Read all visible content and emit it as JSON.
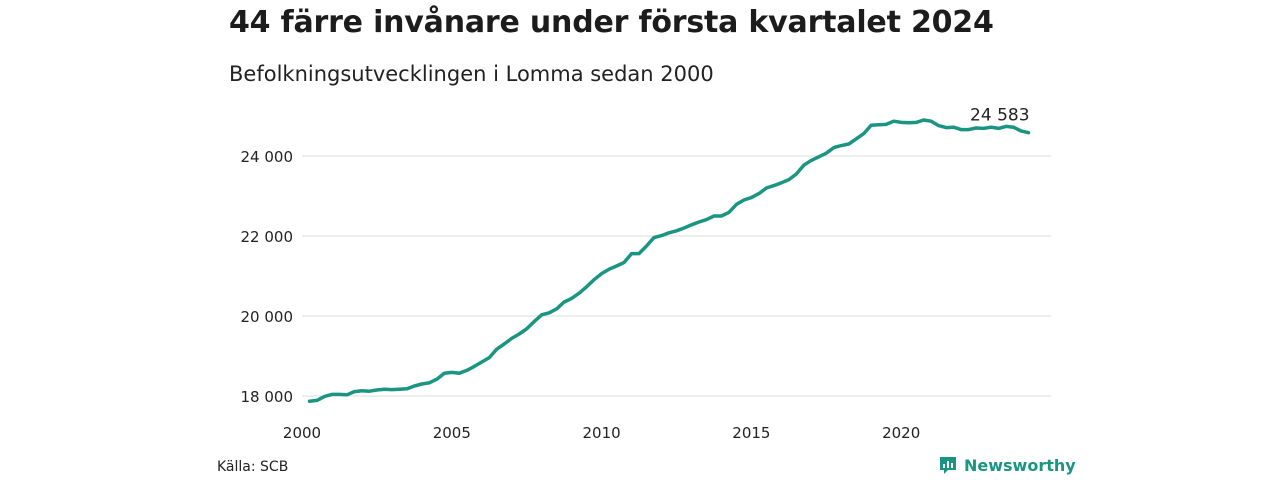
{
  "header": {
    "title": "44 färre invånare under första kvartalet 2024",
    "subtitle": "Befolkningsutvecklingen i Lomma sedan 2000"
  },
  "footer": {
    "source": "Källa: SCB",
    "brand": "Newsworthy"
  },
  "colors": {
    "line": "#1a9582",
    "grid": "#dddddd",
    "brand": "#1a9582"
  },
  "chart_data": {
    "type": "line",
    "title": "44 färre invånare under första kvartalet 2024",
    "subtitle": "Befolkningsutvecklingen i Lomma sedan 2000",
    "xlabel": "",
    "ylabel": "",
    "xlim": [
      2000,
      2025
    ],
    "ylim": [
      17800,
      25100
    ],
    "xticks": [
      {
        "value": 2000,
        "label": "2000"
      },
      {
        "value": 2005,
        "label": "2005"
      },
      {
        "value": 2010,
        "label": "2010"
      },
      {
        "value": 2015,
        "label": "2015"
      },
      {
        "value": 2020,
        "label": "2020"
      }
    ],
    "yticks": [
      {
        "value": 18000,
        "label": "18 000"
      },
      {
        "value": 20000,
        "label": "20 000"
      },
      {
        "value": 22000,
        "label": "22 000"
      },
      {
        "value": 24000,
        "label": "24 000"
      }
    ],
    "grid": "horizontal",
    "end_label": "24 583",
    "series": [
      {
        "points": [
          [
            2000.25,
            17870
          ],
          [
            2000.5,
            17890
          ],
          [
            2000.75,
            17990
          ],
          [
            2001.0,
            18040
          ],
          [
            2001.25,
            18040
          ],
          [
            2001.5,
            18030
          ],
          [
            2001.75,
            18110
          ],
          [
            2002.0,
            18130
          ],
          [
            2002.25,
            18120
          ],
          [
            2002.5,
            18150
          ],
          [
            2002.75,
            18170
          ],
          [
            2003.0,
            18160
          ],
          [
            2003.25,
            18170
          ],
          [
            2003.5,
            18180
          ],
          [
            2003.75,
            18250
          ],
          [
            2004.0,
            18300
          ],
          [
            2004.25,
            18330
          ],
          [
            2004.5,
            18420
          ],
          [
            2004.75,
            18570
          ],
          [
            2005.0,
            18590
          ],
          [
            2005.25,
            18570
          ],
          [
            2005.5,
            18640
          ],
          [
            2005.75,
            18740
          ],
          [
            2006.0,
            18850
          ],
          [
            2006.25,
            18960
          ],
          [
            2006.5,
            19170
          ],
          [
            2006.75,
            19300
          ],
          [
            2007.0,
            19440
          ],
          [
            2007.25,
            19550
          ],
          [
            2007.5,
            19680
          ],
          [
            2007.75,
            19860
          ],
          [
            2008.0,
            20030
          ],
          [
            2008.25,
            20080
          ],
          [
            2008.5,
            20180
          ],
          [
            2008.75,
            20350
          ],
          [
            2009.0,
            20440
          ],
          [
            2009.25,
            20570
          ],
          [
            2009.5,
            20730
          ],
          [
            2009.75,
            20910
          ],
          [
            2010.0,
            21060
          ],
          [
            2010.25,
            21170
          ],
          [
            2010.5,
            21250
          ],
          [
            2010.75,
            21340
          ],
          [
            2011.0,
            21560
          ],
          [
            2011.25,
            21560
          ],
          [
            2011.5,
            21750
          ],
          [
            2011.75,
            21960
          ],
          [
            2012.0,
            22010
          ],
          [
            2012.25,
            22080
          ],
          [
            2012.5,
            22130
          ],
          [
            2012.75,
            22200
          ],
          [
            2013.0,
            22280
          ],
          [
            2013.25,
            22350
          ],
          [
            2013.5,
            22410
          ],
          [
            2013.75,
            22500
          ],
          [
            2014.0,
            22500
          ],
          [
            2014.25,
            22590
          ],
          [
            2014.5,
            22790
          ],
          [
            2014.75,
            22900
          ],
          [
            2015.0,
            22960
          ],
          [
            2015.25,
            23060
          ],
          [
            2015.5,
            23200
          ],
          [
            2015.75,
            23260
          ],
          [
            2016.0,
            23330
          ],
          [
            2016.25,
            23410
          ],
          [
            2016.5,
            23550
          ],
          [
            2016.75,
            23770
          ],
          [
            2017.0,
            23890
          ],
          [
            2017.25,
            23980
          ],
          [
            2017.5,
            24070
          ],
          [
            2017.75,
            24210
          ],
          [
            2018.0,
            24260
          ],
          [
            2018.25,
            24300
          ],
          [
            2018.5,
            24430
          ],
          [
            2018.75,
            24560
          ],
          [
            2019.0,
            24770
          ],
          [
            2019.25,
            24780
          ],
          [
            2019.5,
            24790
          ],
          [
            2019.75,
            24870
          ],
          [
            2020.0,
            24840
          ],
          [
            2020.25,
            24830
          ],
          [
            2020.5,
            24840
          ],
          [
            2020.75,
            24900
          ],
          [
            2021.0,
            24870
          ],
          [
            2021.25,
            24760
          ],
          [
            2021.5,
            24710
          ],
          [
            2021.75,
            24720
          ],
          [
            2022.0,
            24660
          ],
          [
            2022.25,
            24660
          ],
          [
            2022.5,
            24700
          ],
          [
            2022.75,
            24690
          ],
          [
            2023.0,
            24720
          ],
          [
            2023.25,
            24690
          ],
          [
            2023.5,
            24740
          ],
          [
            2023.75,
            24720
          ],
          [
            2024.0,
            24627
          ],
          [
            2024.25,
            24583
          ]
        ]
      }
    ]
  }
}
